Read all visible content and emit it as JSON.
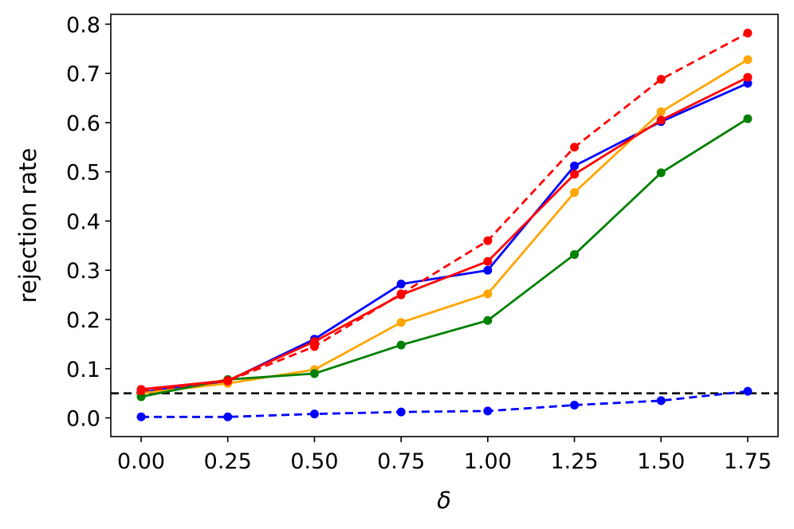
{
  "chart_data": {
    "type": "line",
    "title": "",
    "xlabel": "δ",
    "ylabel": "rejection rate",
    "xlim": [
      -0.0875,
      1.8375
    ],
    "ylim": [
      -0.038,
      0.82
    ],
    "x": [
      0.0,
      0.25,
      0.5,
      0.75,
      1.0,
      1.25,
      1.5,
      1.75
    ],
    "x_ticks": [
      "0.00",
      "0.25",
      "0.50",
      "0.75",
      "1.00",
      "1.25",
      "1.50",
      "1.75"
    ],
    "y_ticks": [
      {
        "value": 0.0,
        "label": "0.0"
      },
      {
        "value": 0.1,
        "label": "0.1"
      },
      {
        "value": 0.2,
        "label": "0.2"
      },
      {
        "value": 0.3,
        "label": "0.3"
      },
      {
        "value": 0.4,
        "label": "0.4"
      },
      {
        "value": 0.5,
        "label": "0.5"
      },
      {
        "value": 0.6,
        "label": "0.6"
      },
      {
        "value": 0.7,
        "label": "0.7"
      },
      {
        "value": 0.8,
        "label": "0.8"
      }
    ],
    "grid": false,
    "legend": "none",
    "reference_line": {
      "y": 0.05,
      "color": "#000000",
      "style": "dashed"
    },
    "series": [
      {
        "color": "#0000ff",
        "style": "solid",
        "values": [
          0.052,
          0.075,
          0.16,
          0.272,
          0.3,
          0.512,
          0.602,
          0.68
        ]
      },
      {
        "color": "#ffa500",
        "style": "solid",
        "values": [
          0.05,
          0.07,
          0.098,
          0.194,
          0.252,
          0.458,
          0.622,
          0.728
        ]
      },
      {
        "color": "#008000",
        "style": "solid",
        "values": [
          0.043,
          0.078,
          0.09,
          0.148,
          0.198,
          0.332,
          0.498,
          0.608
        ]
      },
      {
        "color": "#ff0000",
        "style": "solid",
        "values": [
          0.058,
          0.076,
          0.155,
          0.25,
          0.318,
          0.495,
          0.605,
          0.692
        ]
      },
      {
        "color": "#ff0000",
        "style": "dashed",
        "values": [
          0.055,
          0.075,
          0.145,
          0.252,
          0.36,
          0.55,
          0.688,
          0.782
        ]
      },
      {
        "color": "#0000ff",
        "style": "dashed",
        "values": [
          0.002,
          0.002,
          0.008,
          0.012,
          0.014,
          0.026,
          0.035,
          0.054
        ]
      }
    ]
  }
}
